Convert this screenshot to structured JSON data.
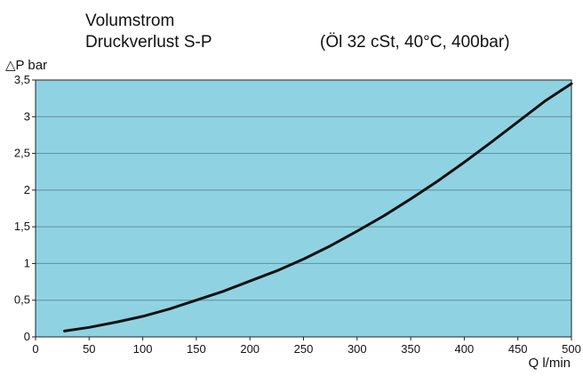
{
  "colors": {
    "plot_background": "#8fd3e3",
    "grid": "#5f8f9a",
    "curve": "#111111",
    "frame": "#222222"
  },
  "chart_data": {
    "type": "line",
    "title": "Volumstrom",
    "subtitle": "Druckverlust S-P",
    "condition_note": "(Öl 32 cSt, 40°C, 400bar)",
    "xlabel": "Q l/min",
    "ylabel": "△P bar",
    "xlim": [
      0,
      500
    ],
    "ylim": [
      0,
      3.5
    ],
    "x_ticks": [
      "0",
      "50",
      "100",
      "150",
      "200",
      "250",
      "300",
      "350",
      "400",
      "450",
      "500"
    ],
    "y_ticks": [
      "0",
      "0,5",
      "1",
      "1,5",
      "2",
      "2,5",
      "3",
      "3,5"
    ],
    "grid": "horizontal",
    "series": [
      {
        "x": [
          27,
          50,
          75,
          100,
          125,
          150,
          175,
          200,
          225,
          250,
          275,
          300,
          325,
          350,
          375,
          400,
          425,
          450,
          475,
          500
        ],
        "values": [
          0.08,
          0.13,
          0.2,
          0.28,
          0.38,
          0.5,
          0.62,
          0.76,
          0.9,
          1.06,
          1.24,
          1.44,
          1.65,
          1.88,
          2.12,
          2.38,
          2.65,
          2.93,
          3.21,
          3.45
        ]
      }
    ]
  }
}
